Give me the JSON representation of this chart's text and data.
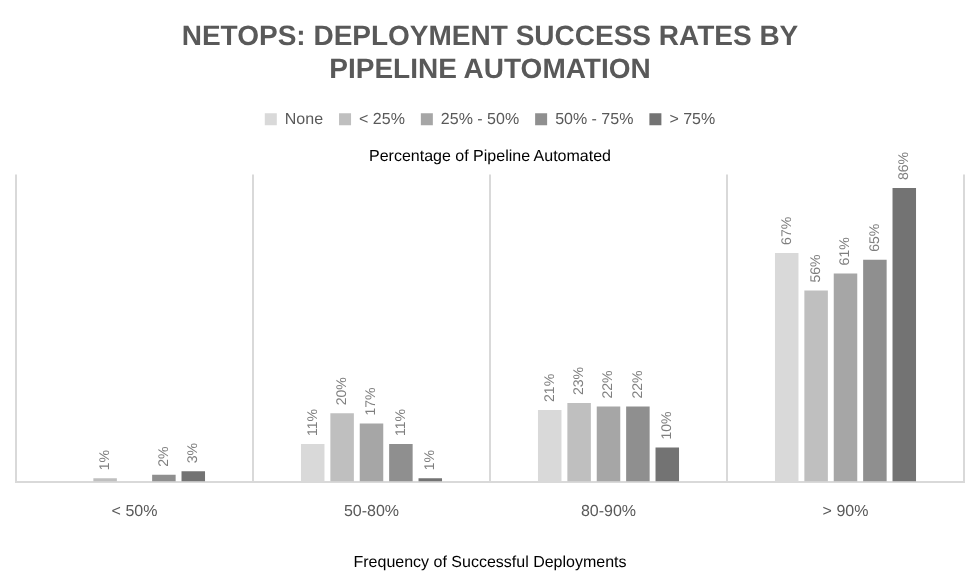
{
  "chart_data": {
    "type": "bar",
    "title": "NETOPS: DEPLOYMENT SUCCESS RATES BY PIPELINE AUTOMATION",
    "legend_title": "Percentage of Pipeline Automated",
    "xlabel": "Frequency of Successful Deployments",
    "categories": [
      "< 50%",
      "50-80%",
      "80-90%",
      "> 90%"
    ],
    "series": [
      {
        "name": "None",
        "color": "#d9d9d9",
        "values": [
          null,
          11,
          21,
          67
        ],
        "value_labels": [
          null,
          "11%",
          "21%",
          "67%"
        ]
      },
      {
        "name": "< 25%",
        "color": "#bfbfbf",
        "values": [
          1,
          20,
          23,
          56
        ],
        "value_labels": [
          "1%",
          "20%",
          "23%",
          "56%"
        ]
      },
      {
        "name": "25% - 50%",
        "color": "#a6a6a6",
        "values": [
          null,
          17,
          22,
          61
        ],
        "value_labels": [
          null,
          "17%",
          "22%",
          "61%"
        ]
      },
      {
        "name": "50% - 75%",
        "color": "#8f8f8f",
        "values": [
          2,
          11,
          22,
          65
        ],
        "value_labels": [
          "2%",
          "11%",
          "22%",
          "65%"
        ]
      },
      {
        "name": "> 75%",
        "color": "#737373",
        "values": [
          3,
          1,
          10,
          86
        ],
        "value_labels": [
          "3%",
          "1%",
          "10%",
          "86%"
        ]
      }
    ],
    "grid": "x",
    "legend": "top"
  }
}
